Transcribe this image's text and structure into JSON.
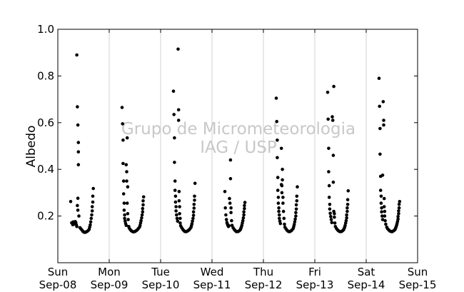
{
  "chart_data": {
    "type": "scatter",
    "ylabel": "Albedo",
    "xlabel": "",
    "ylim": [
      0.0,
      1.0
    ],
    "yticks": [
      0.2,
      0.4,
      0.6,
      0.8,
      1.0
    ],
    "ytick_labels": [
      "0.2",
      "0.4",
      "0.6",
      "0.8",
      "1.0"
    ],
    "xlim": [
      0,
      7
    ],
    "xticks": [
      {
        "day": "Sun",
        "date": "Sep-08"
      },
      {
        "day": "Mon",
        "date": "Sep-09"
      },
      {
        "day": "Tue",
        "date": "Sep-10"
      },
      {
        "day": "Wed",
        "date": "Sep-11"
      },
      {
        "day": "Thu",
        "date": "Sep-12"
      },
      {
        "day": "Fri",
        "date": "Sep-13"
      },
      {
        "day": "Sat",
        "date": "Sep-14"
      },
      {
        "day": "Sun",
        "date": "Sep-15"
      }
    ],
    "grid": "vertical",
    "marker_color": "#000000",
    "watermark_lines": [
      "Grupo de Micrometeorologia",
      "IAG / USP"
    ],
    "series": [
      {
        "points": [
          [
            0.25,
            0.262
          ],
          [
            0.27,
            0.171
          ],
          [
            0.29,
            0.163
          ],
          [
            0.3,
            0.175
          ],
          [
            0.31,
            0.168
          ],
          [
            0.32,
            0.165
          ],
          [
            0.33,
            0.171
          ],
          [
            0.34,
            0.176
          ],
          [
            0.35,
            0.172
          ],
          [
            0.36,
            0.163
          ],
          [
            0.37,
            0.155
          ],
          [
            0.37,
            0.89
          ],
          [
            0.38,
            0.668
          ],
          [
            0.38,
            0.245
          ],
          [
            0.39,
            0.59
          ],
          [
            0.39,
            0.225
          ],
          [
            0.39,
            0.276
          ],
          [
            0.4,
            0.515
          ],
          [
            0.4,
            0.475
          ],
          [
            0.4,
            0.42
          ],
          [
            0.41,
            0.2
          ],
          [
            0.43,
            0.15
          ],
          [
            0.45,
            0.145
          ],
          [
            0.47,
            0.14
          ],
          [
            0.49,
            0.134
          ],
          [
            0.51,
            0.131
          ],
          [
            0.53,
            0.13
          ],
          [
            0.55,
            0.132
          ],
          [
            0.57,
            0.134
          ],
          [
            0.59,
            0.138
          ],
          [
            0.61,
            0.143
          ],
          [
            0.62,
            0.152
          ],
          [
            0.63,
            0.162
          ],
          [
            0.64,
            0.175
          ],
          [
            0.65,
            0.19
          ],
          [
            0.66,
            0.205
          ],
          [
            0.67,
            0.222
          ],
          [
            0.67,
            0.24
          ],
          [
            0.68,
            0.26
          ],
          [
            0.68,
            0.285
          ],
          [
            0.69,
            0.318
          ],
          [
            1.25,
            0.665
          ],
          [
            1.26,
            0.595
          ],
          [
            1.27,
            0.525
          ],
          [
            1.27,
            0.425
          ],
          [
            1.28,
            0.35
          ],
          [
            1.28,
            0.295
          ],
          [
            1.29,
            0.255
          ],
          [
            1.29,
            0.225
          ],
          [
            1.3,
            0.205
          ],
          [
            1.3,
            0.19
          ],
          [
            1.31,
            0.178
          ],
          [
            1.32,
            0.168
          ],
          [
            1.33,
            0.16
          ],
          [
            1.33,
            0.42
          ],
          [
            1.34,
            0.39
          ],
          [
            1.34,
            0.35
          ],
          [
            1.35,
            0.535
          ],
          [
            1.35,
            0.255
          ],
          [
            1.36,
            0.325
          ],
          [
            1.36,
            0.21
          ],
          [
            1.37,
            0.185
          ],
          [
            1.38,
            0.155
          ],
          [
            1.39,
            0.148
          ],
          [
            1.41,
            0.142
          ],
          [
            1.43,
            0.137
          ],
          [
            1.45,
            0.134
          ],
          [
            1.47,
            0.132
          ],
          [
            1.49,
            0.133
          ],
          [
            1.51,
            0.135
          ],
          [
            1.53,
            0.138
          ],
          [
            1.55,
            0.142
          ],
          [
            1.57,
            0.147
          ],
          [
            1.59,
            0.153
          ],
          [
            1.6,
            0.16
          ],
          [
            1.61,
            0.17
          ],
          [
            1.62,
            0.18
          ],
          [
            1.63,
            0.192
          ],
          [
            1.64,
            0.205
          ],
          [
            1.65,
            0.218
          ],
          [
            1.65,
            0.232
          ],
          [
            1.66,
            0.248
          ],
          [
            1.66,
            0.265
          ],
          [
            1.67,
            0.282
          ],
          [
            2.25,
            0.735
          ],
          [
            2.26,
            0.635
          ],
          [
            2.27,
            0.535
          ],
          [
            2.27,
            0.43
          ],
          [
            2.28,
            0.35
          ],
          [
            2.28,
            0.31
          ],
          [
            2.29,
            0.285
          ],
          [
            2.29,
            0.26
          ],
          [
            2.3,
            0.24
          ],
          [
            2.3,
            0.222
          ],
          [
            2.31,
            0.205
          ],
          [
            2.32,
            0.19
          ],
          [
            2.33,
            0.178
          ],
          [
            2.34,
            0.915
          ],
          [
            2.35,
            0.655
          ],
          [
            2.35,
            0.61
          ],
          [
            2.36,
            0.305
          ],
          [
            2.36,
            0.265
          ],
          [
            2.37,
            0.24
          ],
          [
            2.37,
            0.21
          ],
          [
            2.38,
            0.19
          ],
          [
            2.38,
            0.17
          ],
          [
            2.39,
            0.158
          ],
          [
            2.41,
            0.15
          ],
          [
            2.43,
            0.143
          ],
          [
            2.45,
            0.138
          ],
          [
            2.47,
            0.134
          ],
          [
            2.49,
            0.133
          ],
          [
            2.51,
            0.134
          ],
          [
            2.53,
            0.137
          ],
          [
            2.55,
            0.14
          ],
          [
            2.57,
            0.145
          ],
          [
            2.59,
            0.151
          ],
          [
            2.6,
            0.158
          ],
          [
            2.61,
            0.167
          ],
          [
            2.62,
            0.178
          ],
          [
            2.63,
            0.19
          ],
          [
            2.64,
            0.203
          ],
          [
            2.64,
            0.218
          ],
          [
            2.65,
            0.234
          ],
          [
            2.65,
            0.25
          ],
          [
            2.66,
            0.268
          ],
          [
            2.66,
            0.285
          ],
          [
            2.67,
            0.34
          ],
          [
            3.25,
            0.305
          ],
          [
            3.26,
            0.235
          ],
          [
            3.27,
            0.205
          ],
          [
            3.28,
            0.185
          ],
          [
            3.29,
            0.172
          ],
          [
            3.3,
            0.165
          ],
          [
            3.31,
            0.16
          ],
          [
            3.32,
            0.155
          ],
          [
            3.33,
            0.158
          ],
          [
            3.34,
            0.275
          ],
          [
            3.35,
            0.255
          ],
          [
            3.36,
            0.44
          ],
          [
            3.36,
            0.36
          ],
          [
            3.37,
            0.235
          ],
          [
            3.37,
            0.215
          ],
          [
            3.38,
            0.18
          ],
          [
            3.39,
            0.16
          ],
          [
            3.41,
            0.15
          ],
          [
            3.43,
            0.143
          ],
          [
            3.45,
            0.138
          ],
          [
            3.47,
            0.134
          ],
          [
            3.49,
            0.133
          ],
          [
            3.51,
            0.134
          ],
          [
            3.53,
            0.137
          ],
          [
            3.55,
            0.141
          ],
          [
            3.56,
            0.146
          ],
          [
            3.57,
            0.152
          ],
          [
            3.58,
            0.16
          ],
          [
            3.59,
            0.17
          ],
          [
            3.6,
            0.18
          ],
          [
            3.61,
            0.192
          ],
          [
            3.62,
            0.205
          ],
          [
            3.62,
            0.218
          ],
          [
            3.63,
            0.232
          ],
          [
            3.63,
            0.245
          ],
          [
            3.64,
            0.258
          ],
          [
            4.25,
            0.705
          ],
          [
            4.26,
            0.605
          ],
          [
            4.27,
            0.525
          ],
          [
            4.27,
            0.45
          ],
          [
            4.28,
            0.365
          ],
          [
            4.28,
            0.31
          ],
          [
            4.29,
            0.28
          ],
          [
            4.29,
            0.255
          ],
          [
            4.3,
            0.235
          ],
          [
            4.3,
            0.22
          ],
          [
            4.31,
            0.205
          ],
          [
            4.31,
            0.19
          ],
          [
            4.32,
            0.178
          ],
          [
            4.33,
            0.168
          ],
          [
            4.35,
            0.49
          ],
          [
            4.35,
            0.335
          ],
          [
            4.36,
            0.33
          ],
          [
            4.36,
            0.3
          ],
          [
            4.37,
            0.4
          ],
          [
            4.37,
            0.355
          ],
          [
            4.38,
            0.28
          ],
          [
            4.38,
            0.255
          ],
          [
            4.39,
            0.22
          ],
          [
            4.4,
            0.19
          ],
          [
            4.41,
            0.165
          ],
          [
            4.42,
            0.152
          ],
          [
            4.44,
            0.145
          ],
          [
            4.46,
            0.139
          ],
          [
            4.48,
            0.135
          ],
          [
            4.5,
            0.133
          ],
          [
            4.52,
            0.134
          ],
          [
            4.54,
            0.137
          ],
          [
            4.56,
            0.141
          ],
          [
            4.58,
            0.147
          ],
          [
            4.59,
            0.155
          ],
          [
            4.6,
            0.164
          ],
          [
            4.61,
            0.175
          ],
          [
            4.62,
            0.187
          ],
          [
            4.63,
            0.2
          ],
          [
            4.63,
            0.215
          ],
          [
            4.64,
            0.23
          ],
          [
            4.64,
            0.248
          ],
          [
            4.65,
            0.265
          ],
          [
            4.65,
            0.285
          ],
          [
            4.66,
            0.325
          ],
          [
            5.25,
            0.73
          ],
          [
            5.26,
            0.615
          ],
          [
            5.27,
            0.49
          ],
          [
            5.27,
            0.39
          ],
          [
            5.28,
            0.33
          ],
          [
            5.28,
            0.28
          ],
          [
            5.29,
            0.25
          ],
          [
            5.29,
            0.23
          ],
          [
            5.3,
            0.212
          ],
          [
            5.31,
            0.198
          ],
          [
            5.32,
            0.185
          ],
          [
            5.33,
            0.172
          ],
          [
            5.34,
            0.625
          ],
          [
            5.35,
            0.61
          ],
          [
            5.36,
            0.46
          ],
          [
            5.36,
            0.345
          ],
          [
            5.37,
            0.755
          ],
          [
            5.37,
            0.22
          ],
          [
            5.38,
            0.21
          ],
          [
            5.38,
            0.195
          ],
          [
            5.39,
            0.17
          ],
          [
            5.4,
            0.155
          ],
          [
            5.42,
            0.147
          ],
          [
            5.44,
            0.141
          ],
          [
            5.46,
            0.137
          ],
          [
            5.48,
            0.134
          ],
          [
            5.5,
            0.133
          ],
          [
            5.52,
            0.134
          ],
          [
            5.54,
            0.137
          ],
          [
            5.56,
            0.141
          ],
          [
            5.57,
            0.146
          ],
          [
            5.58,
            0.152
          ],
          [
            5.59,
            0.16
          ],
          [
            5.6,
            0.17
          ],
          [
            5.61,
            0.18
          ],
          [
            5.62,
            0.192
          ],
          [
            5.62,
            0.205
          ],
          [
            5.63,
            0.22
          ],
          [
            5.63,
            0.235
          ],
          [
            5.64,
            0.25
          ],
          [
            5.64,
            0.27
          ],
          [
            5.65,
            0.308
          ],
          [
            6.25,
            0.79
          ],
          [
            6.26,
            0.67
          ],
          [
            6.27,
            0.575
          ],
          [
            6.27,
            0.465
          ],
          [
            6.28,
            0.37
          ],
          [
            6.28,
            0.31
          ],
          [
            6.29,
            0.285
          ],
          [
            6.29,
            0.255
          ],
          [
            6.3,
            0.235
          ],
          [
            6.3,
            0.218
          ],
          [
            6.31,
            0.2
          ],
          [
            6.32,
            0.185
          ],
          [
            6.32,
            0.375
          ],
          [
            6.33,
            0.69
          ],
          [
            6.34,
            0.61
          ],
          [
            6.34,
            0.59
          ],
          [
            6.35,
            0.275
          ],
          [
            6.35,
            0.24
          ],
          [
            6.36,
            0.22
          ],
          [
            6.36,
            0.2
          ],
          [
            6.37,
            0.18
          ],
          [
            6.38,
            0.165
          ],
          [
            6.4,
            0.152
          ],
          [
            6.42,
            0.145
          ],
          [
            6.44,
            0.14
          ],
          [
            6.46,
            0.136
          ],
          [
            6.48,
            0.134
          ],
          [
            6.5,
            0.133
          ],
          [
            6.52,
            0.135
          ],
          [
            6.54,
            0.138
          ],
          [
            6.56,
            0.142
          ],
          [
            6.57,
            0.147
          ],
          [
            6.58,
            0.153
          ],
          [
            6.59,
            0.16
          ],
          [
            6.6,
            0.168
          ],
          [
            6.61,
            0.177
          ],
          [
            6.62,
            0.187
          ],
          [
            6.62,
            0.198
          ],
          [
            6.63,
            0.21
          ],
          [
            6.63,
            0.222
          ],
          [
            6.64,
            0.235
          ],
          [
            6.64,
            0.25
          ],
          [
            6.65,
            0.262
          ]
        ]
      }
    ]
  }
}
